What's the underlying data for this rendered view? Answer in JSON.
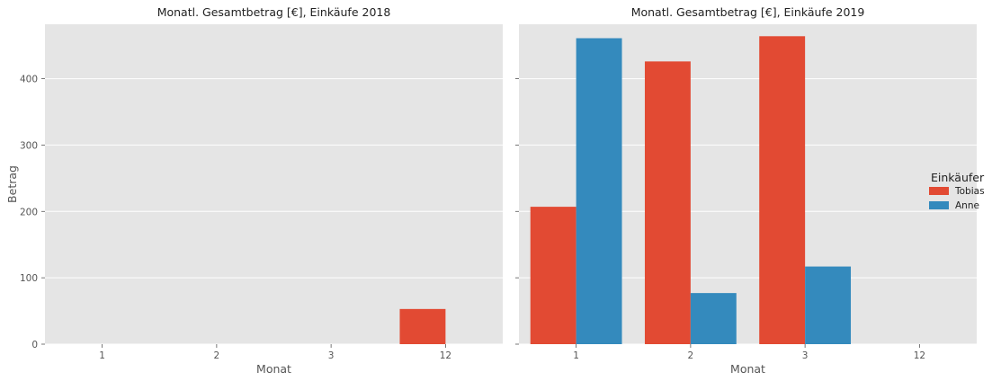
{
  "chart_data": {
    "type": "bar",
    "ylabel": "Betrag",
    "xlabel": "Monat",
    "ylim": [
      0,
      482
    ],
    "yticks": [
      0,
      100,
      200,
      300,
      400
    ],
    "grid": true,
    "legend": {
      "title": "Einkäufer",
      "placement": "right",
      "entries": [
        {
          "name": "Tobias",
          "color": "#E24A33"
        },
        {
          "name": "Anne",
          "color": "#348ABD"
        }
      ]
    },
    "panels": [
      {
        "title": "Monatl. Gesamtbetrag [€], Einkäufe 2018",
        "categories": [
          "1",
          "2",
          "3",
          "12"
        ],
        "series": [
          {
            "name": "Tobias",
            "values": [
              null,
              null,
              null,
              53
            ]
          },
          {
            "name": "Anne",
            "values": [
              null,
              null,
              null,
              null
            ]
          }
        ]
      },
      {
        "title": "Monatl. Gesamtbetrag [€], Einkäufe 2019",
        "categories": [
          "1",
          "2",
          "3",
          "12"
        ],
        "series": [
          {
            "name": "Tobias",
            "values": [
              207,
              426,
              464,
              null
            ]
          },
          {
            "name": "Anne",
            "values": [
              461,
              77,
              117,
              null
            ]
          }
        ]
      }
    ]
  }
}
